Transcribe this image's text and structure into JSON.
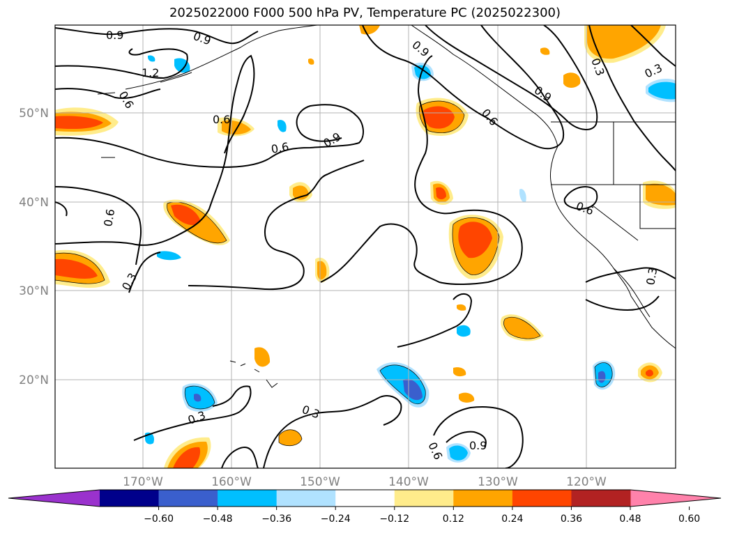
{
  "title": "2025022000 F000 500 hPa PV, Temperature PC (2025022300)",
  "lat_labels": [
    "50°N",
    "40°N",
    "30°N",
    "20°N"
  ],
  "lon_labels": [
    "170°W",
    "160°W",
    "150°W",
    "140°W",
    "130°W",
    "120°W"
  ],
  "contour_labels": [
    "0.9",
    "0.9",
    "1.2",
    "0.6",
    "0.6",
    "0.6",
    "0.9",
    "0.9",
    "0.9",
    "0.6",
    "0.3",
    "0.3",
    "0.6",
    "0.6",
    "0.3",
    "0.3",
    "0.3",
    "0.3",
    "0.6"
  ],
  "colorbar": {
    "ticks": [
      "−0.60",
      "−0.48",
      "−0.36",
      "−0.24",
      "−0.12",
      "0.12",
      "0.24",
      "0.36",
      "0.48",
      "0.60"
    ],
    "colors": [
      "#9a32cd",
      "#00008b",
      "#3a5fcd",
      "#00bfff",
      "#b0e2ff",
      "#ffffff",
      "#ffec8b",
      "#ffa500",
      "#ff4500",
      "#b22222",
      "#ff82ab"
    ]
  }
}
